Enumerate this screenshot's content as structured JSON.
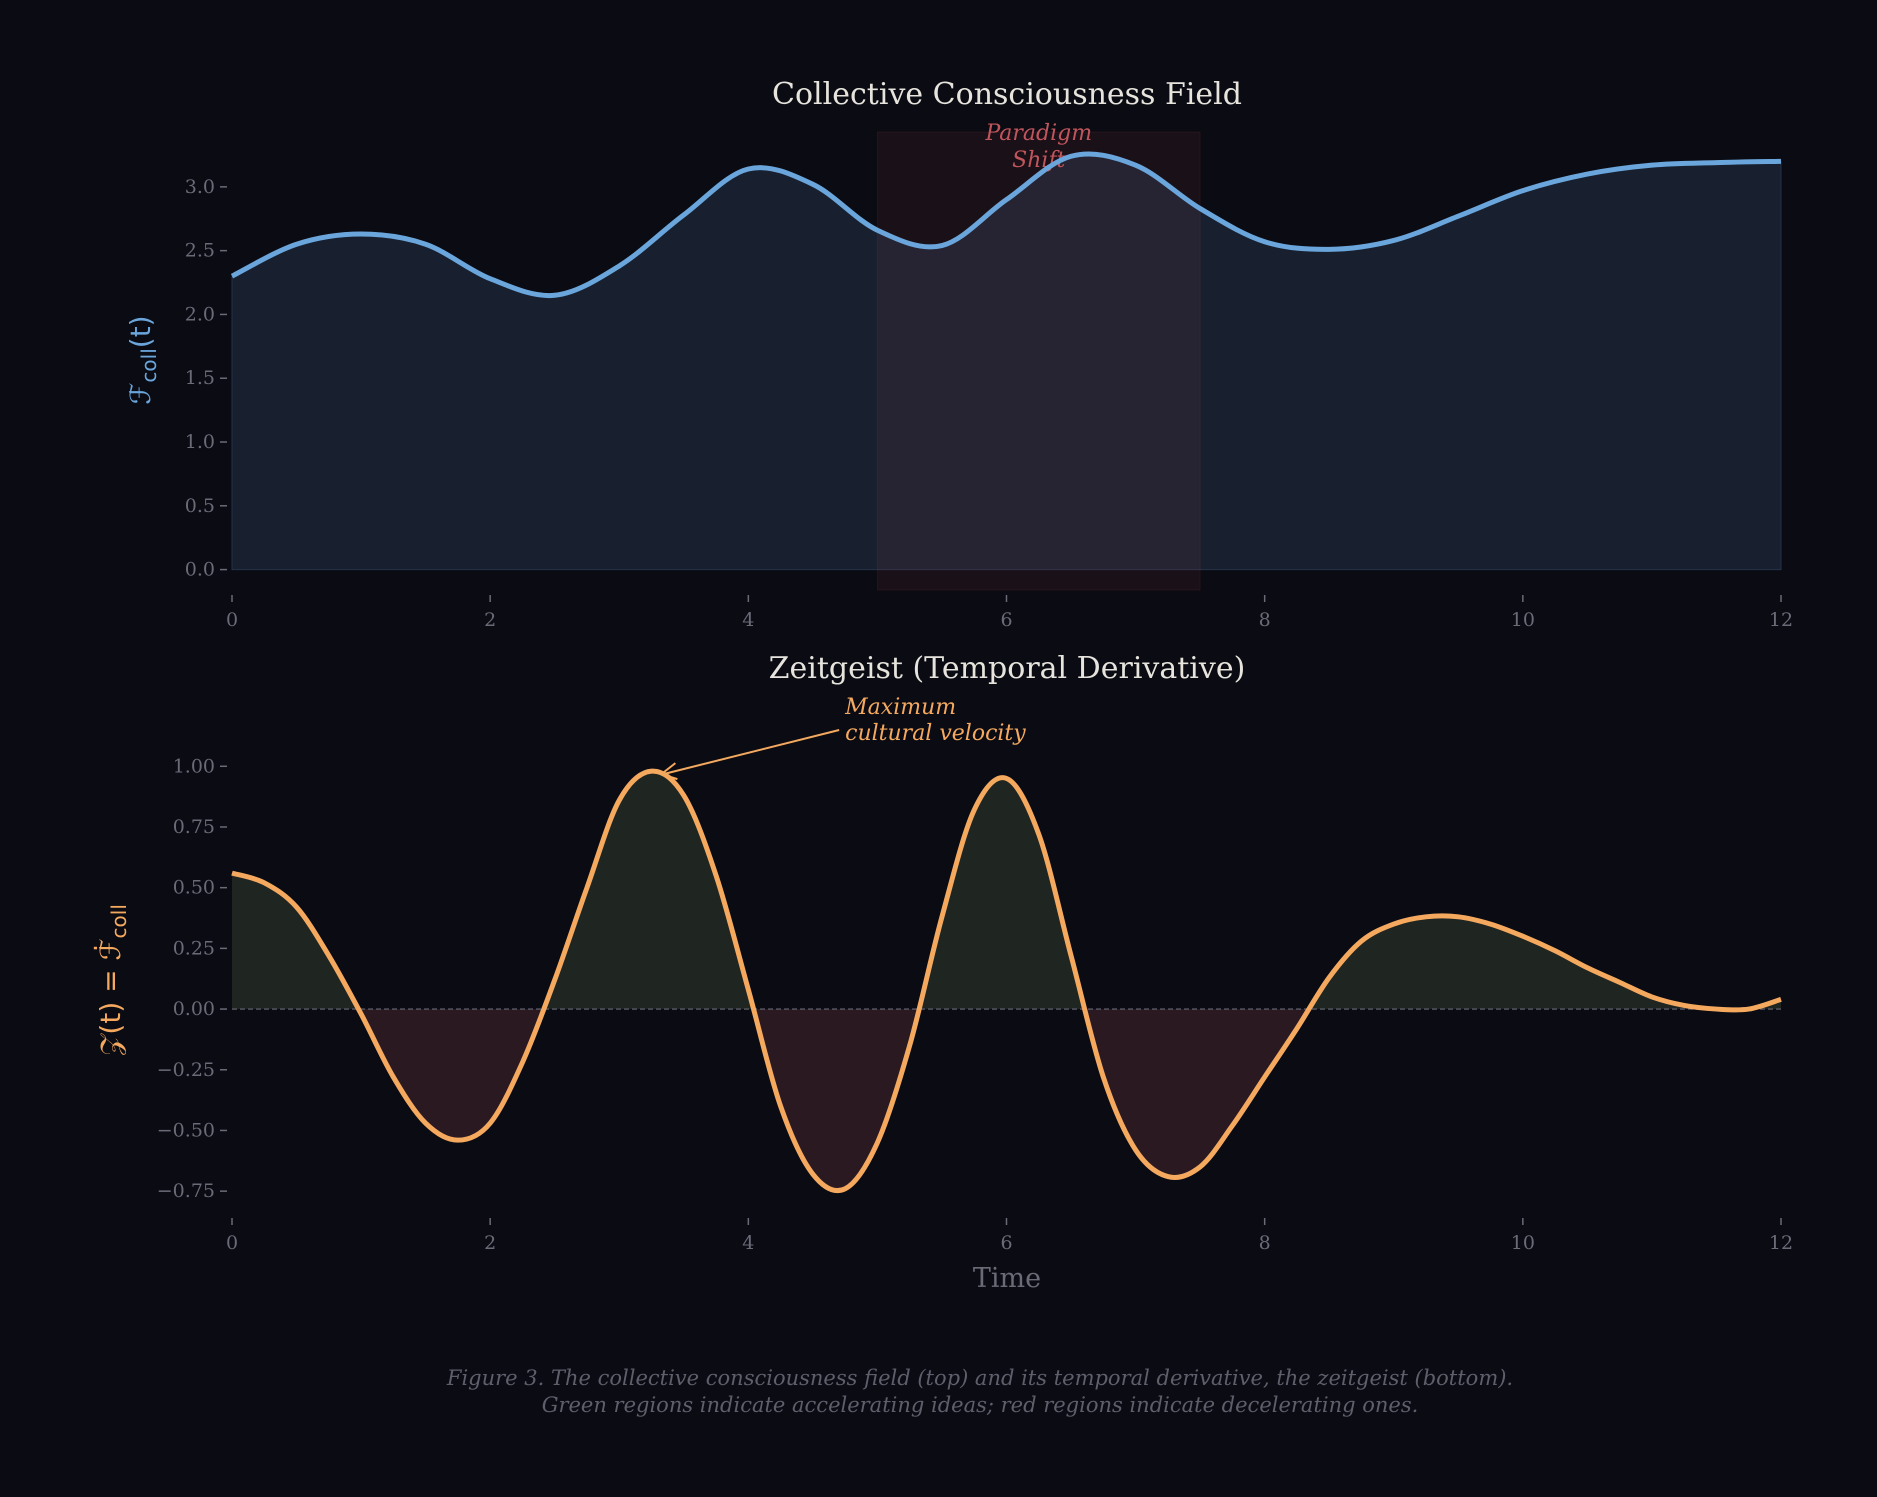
{
  "colors": {
    "background": "#0a0b13",
    "field_line": "#6aa6dc",
    "field_fill": "#182030",
    "zeitgeist_line": "#f5a95f",
    "positive_fill": "#1f2520",
    "negative_fill": "#2a1920",
    "paradigm_region": "#c0404a",
    "paradigm_text": "#c0555c",
    "tick_text": "#6b6b78"
  },
  "caption": {
    "line1": "Figure 3. The collective consciousness field (top) and its temporal derivative, the zeitgeist (bottom).",
    "line2": "Green regions indicate accelerating ideas; red regions indicate decelerating ones."
  },
  "chart_data": [
    {
      "type": "area",
      "title": "Collective Consciousness Field",
      "ylabel": {
        "main": "ℱ",
        "sub": "coll",
        "tail": "(t)"
      },
      "xlabel": "",
      "xlim": [
        0,
        12
      ],
      "ylim": [
        -0.16,
        3.43
      ],
      "xticks": [
        0,
        2,
        4,
        6,
        8,
        10,
        12
      ],
      "xtick_labels": [
        "0",
        "2",
        "4",
        "6",
        "8",
        "10",
        "12"
      ],
      "yticks": [
        0,
        0.5,
        1,
        1.5,
        2,
        2.5,
        3
      ],
      "ytick_labels": [
        "0.0",
        "0.5",
        "1.0",
        "1.5",
        "2.0",
        "2.5",
        "3.0"
      ],
      "grid": false,
      "x": [
        0,
        0.5,
        1,
        1.5,
        2,
        2.5,
        3,
        3.5,
        4,
        4.5,
        5,
        5.5,
        6,
        6.5,
        7,
        7.5,
        8,
        8.5,
        9,
        9.5,
        10,
        10.5,
        11,
        11.5,
        12
      ],
      "y": [
        2.3,
        2.55,
        2.63,
        2.55,
        2.28,
        2.15,
        2.38,
        2.78,
        3.14,
        3.02,
        2.66,
        2.54,
        2.9,
        3.24,
        3.17,
        2.83,
        2.57,
        2.51,
        2.58,
        2.77,
        2.97,
        3.1,
        3.17,
        3.19,
        3.2
      ],
      "highlight": {
        "x_range": [
          5,
          7.5
        ],
        "label_line1": "Paradigm",
        "label_line2": "Shift",
        "label_x": 6.25,
        "label_y": 3.3
      }
    },
    {
      "type": "line",
      "title": "Zeitgeist (Temporal Derivative)",
      "ylabel": {
        "main": "𝒵(t) = ℱ̇",
        "sub": "coll"
      },
      "xlabel": "Time",
      "xlim": [
        0,
        12
      ],
      "ylim": [
        -0.84,
        1.1
      ],
      "xticks": [
        0,
        2,
        4,
        6,
        8,
        10,
        12
      ],
      "xtick_labels": [
        "0",
        "2",
        "4",
        "6",
        "8",
        "10",
        "12"
      ],
      "yticks": [
        -0.75,
        -0.5,
        -0.25,
        0,
        0.25,
        0.5,
        0.75,
        1.0
      ],
      "ytick_labels": [
        "−0.75",
        "−0.50",
        "−0.25",
        "0.00",
        "0.25",
        "0.50",
        "0.75",
        "1.00"
      ],
      "grid": false,
      "x": [
        0,
        0.25,
        0.5,
        0.75,
        1,
        1.25,
        1.5,
        1.75,
        2,
        2.25,
        2.5,
        2.75,
        3,
        3.25,
        3.5,
        3.75,
        4,
        4.25,
        4.5,
        4.75,
        5,
        5.25,
        5.5,
        5.75,
        6,
        6.25,
        6.5,
        6.75,
        7,
        7.25,
        7.5,
        7.75,
        8,
        8.25,
        8.5,
        8.75,
        9,
        9.25,
        9.5,
        9.75,
        10,
        10.25,
        10.5,
        10.75,
        11,
        11.25,
        11.5,
        11.75,
        12
      ],
      "y": [
        0.56,
        0.52,
        0.42,
        0.22,
        -0.02,
        -0.28,
        -0.47,
        -0.54,
        -0.47,
        -0.22,
        0.12,
        0.5,
        0.86,
        0.98,
        0.88,
        0.55,
        0.08,
        -0.4,
        -0.68,
        -0.74,
        -0.55,
        -0.15,
        0.38,
        0.82,
        0.95,
        0.72,
        0.22,
        -0.28,
        -0.58,
        -0.69,
        -0.65,
        -0.48,
        -0.28,
        -0.08,
        0.13,
        0.28,
        0.35,
        0.38,
        0.38,
        0.35,
        0.3,
        0.24,
        0.17,
        0.11,
        0.05,
        0.015,
        0.0,
        0.0,
        0.04
      ],
      "zero_line": true,
      "annotation": {
        "line1": "Maximum",
        "line2": "cultural velocity",
        "point": [
          3.28,
          0.98
        ],
        "text_at": [
          4.75,
          1.2
        ]
      }
    }
  ]
}
